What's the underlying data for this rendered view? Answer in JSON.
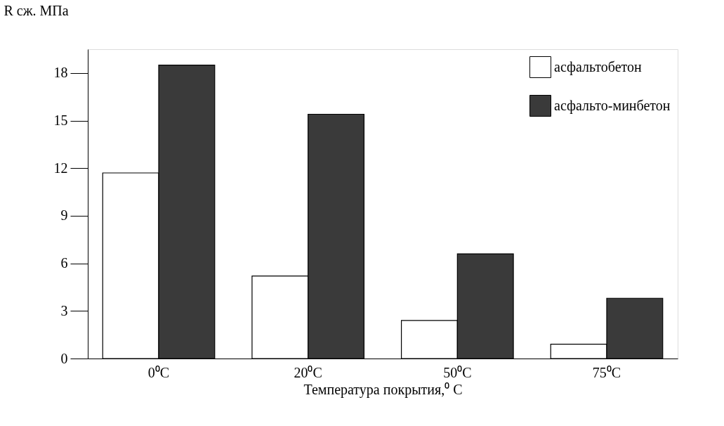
{
  "chart_data": {
    "type": "bar",
    "xlabel": "Температура покрытия,⁰ C",
    "ylabel": "R сж. МПа",
    "categories": [
      "0⁰C",
      "20⁰C",
      "50⁰C",
      "75⁰C"
    ],
    "series": [
      {
        "name": "асфальтобетон",
        "color": "#ffffff",
        "values": [
          11.7,
          5.2,
          2.4,
          0.9
        ]
      },
      {
        "name": "асфальто-минбетон",
        "color": "#3a3a3a",
        "values": [
          18.5,
          15.4,
          6.6,
          3.8
        ]
      }
    ],
    "ylim": [
      0,
      19.5
    ],
    "yticks": [
      0,
      3,
      6,
      9,
      12,
      15,
      18
    ],
    "grid": false,
    "legend": "top right"
  }
}
